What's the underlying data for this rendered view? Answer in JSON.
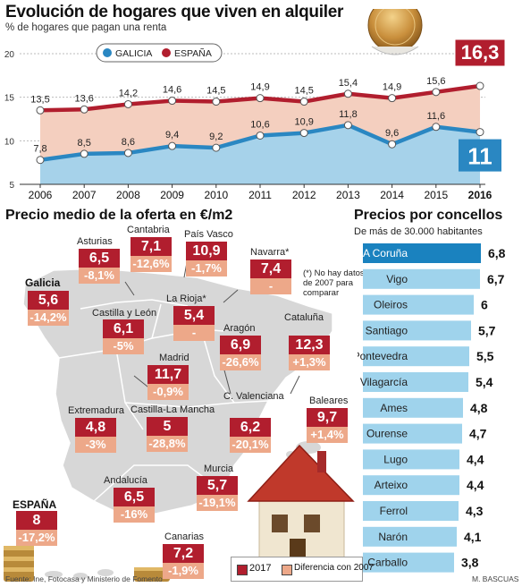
{
  "header": {
    "title": "Evolución de hogares que viven en alquiler",
    "subtitle": "% de hogares que pagan una renta"
  },
  "colors": {
    "galicia": "#2a87c2",
    "espana": "#b11e2e",
    "value_box": "#b11e2e",
    "diff_box": "#eda889",
    "bar_highlight": "#1a82bf",
    "bar_normal": "#9fd3ec"
  },
  "chart_data": [
    {
      "type": "area",
      "title": "Evolución de hogares que viven en alquiler",
      "subtitle": "% de hogares que pagan una renta",
      "categories": [
        "2006",
        "2007",
        "2008",
        "2009",
        "2010",
        "2011",
        "2012",
        "2013",
        "2014",
        "2015",
        "2016"
      ],
      "series": [
        {
          "name": "GALICIA",
          "values": [
            7.8,
            8.5,
            8.6,
            9.4,
            9.2,
            10.6,
            10.9,
            11.8,
            9.6,
            11.6,
            11
          ]
        },
        {
          "name": "ESPAÑA",
          "values": [
            13.5,
            13.6,
            14.2,
            14.6,
            14.5,
            14.9,
            14.5,
            15.4,
            14.9,
            15.6,
            16.3
          ]
        }
      ],
      "value_labels": {
        "GALICIA": [
          "7,8",
          "8,5",
          "8,6",
          "9,4",
          "9,2",
          "10,6",
          "10,9",
          "11,8",
          "9,6",
          "11,6",
          "11"
        ],
        "ESPAÑA": [
          "13,5",
          "13,6",
          "14,2",
          "14,6",
          "14,5",
          "14,9",
          "14,5",
          "15,4",
          "14,9",
          "15,6",
          "16,3"
        ]
      },
      "y_ticks": [
        "5",
        "10",
        "15",
        "20"
      ],
      "ylim": [
        5,
        20
      ],
      "grid": true,
      "legend": "top-left"
    },
    {
      "type": "bar",
      "title": "Precios por concellos",
      "subtitle": "De más de 30.000 habitantes",
      "categories": [
        "A Coruña",
        "Vigo",
        "Oleiros",
        "Santiago",
        "Pontevedra",
        "Vilagarcía",
        "Ames",
        "Ourense",
        "Lugo",
        "Arteixo",
        "Ferrol",
        "Narón",
        "Carballo"
      ],
      "values": [
        6.8,
        6.7,
        6,
        5.7,
        5.5,
        5.4,
        4.8,
        4.7,
        4.4,
        4.4,
        4.3,
        4.1,
        3.8
      ],
      "value_labels": [
        "6,8",
        "6,7",
        "6",
        "5,7",
        "5,5",
        "5,4",
        "4,8",
        "4,7",
        "4,4",
        "4,4",
        "4,3",
        "4,1",
        "3,8"
      ],
      "orientation": "horizontal"
    }
  ],
  "map": {
    "title": "Precio medio de la oferta en €/m2",
    "regions": [
      {
        "name": "Galicia",
        "value": "5,6",
        "diff": "-14,2%"
      },
      {
        "name": "Asturias",
        "value": "6,5",
        "diff": "-8,1%"
      },
      {
        "name": "Cantabria",
        "value": "7,1",
        "diff": "-12,6%"
      },
      {
        "name": "País Vasco",
        "value": "10,9",
        "diff": "-1,7%"
      },
      {
        "name": "Navarra*",
        "value": "7,4",
        "diff": "-"
      },
      {
        "name": "La Rioja*",
        "value": "5,4",
        "diff": "-"
      },
      {
        "name": "Castilla y León",
        "value": "6,1",
        "diff": "-5%"
      },
      {
        "name": "Aragón",
        "value": "6,9",
        "diff": "-26,6%"
      },
      {
        "name": "Cataluña",
        "value": "12,3",
        "diff": "+1,3%"
      },
      {
        "name": "Madrid",
        "value": "11,7",
        "diff": "-0,9%"
      },
      {
        "name": "Extremadura",
        "value": "4,8",
        "diff": "-3%"
      },
      {
        "name": "Castilla-La Mancha",
        "value": "5",
        "diff": "-28,8%"
      },
      {
        "name": "C. Valenciana",
        "value": "6,2",
        "diff": "-20,1%"
      },
      {
        "name": "Baleares",
        "value": "9,7",
        "diff": "+1,4%"
      },
      {
        "name": "Murcia",
        "value": "5,7",
        "diff": "-19,1%"
      },
      {
        "name": "Andalucía",
        "value": "6,5",
        "diff": "-16%"
      },
      {
        "name": "Canarias",
        "value": "7,2",
        "diff": "-1,9%"
      },
      {
        "name": "ESPAÑA",
        "value": "8",
        "diff": "-17,2%"
      }
    ],
    "note": "(*) No hay datos de 2007 para comparar",
    "legend": {
      "current": "2017",
      "diff": "Diferencia con 2007"
    }
  },
  "footer": {
    "source": "Fuente: Ine, Fotocasa y Ministerio de Fomento",
    "author": "M. BASCUAS"
  }
}
